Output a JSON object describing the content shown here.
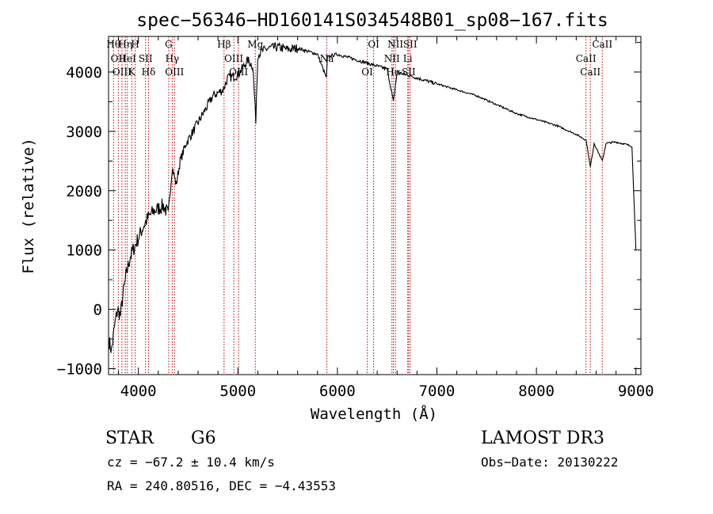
{
  "chart_data": {
    "type": "line",
    "title": "spec−56346−HD160141S034548B01_sp08−167.fits",
    "xlabel": "Wavelength (Å)",
    "ylabel": "Flux (relative)",
    "xlim": [
      3700,
      9050
    ],
    "ylim": [
      -1100,
      4600
    ],
    "x_ticks": [
      4000,
      5000,
      6000,
      7000,
      8000,
      9000
    ],
    "y_ticks": [
      -1000,
      0,
      1000,
      2000,
      3000,
      4000
    ],
    "y_tick_labels": [
      "−1000",
      "0",
      "1000",
      "2000",
      "3000",
      "4000"
    ],
    "series": [
      {
        "name": "spectrum",
        "x": [
          3700,
          3730,
          3760,
          3790,
          3820,
          3850,
          3880,
          3920,
          3960,
          4000,
          4050,
          4100,
          4150,
          4200,
          4250,
          4300,
          4340,
          4380,
          4420,
          4480,
          4550,
          4650,
          4750,
          4850,
          4900,
          5000,
          5100,
          5150,
          5180,
          5200,
          5250,
          5300,
          5400,
          5500,
          5600,
          5700,
          5800,
          5890,
          5900,
          5950,
          6000,
          6100,
          6200,
          6300,
          6400,
          6500,
          6563,
          6600,
          6700,
          6800,
          7000,
          7200,
          7400,
          7600,
          7800,
          8000,
          8200,
          8400,
          8500,
          8542,
          8580,
          8662,
          8700,
          8800,
          8900,
          8960,
          9000
        ],
        "y": [
          -500,
          -700,
          -300,
          0,
          -100,
          300,
          600,
          900,
          1050,
          1200,
          1400,
          1550,
          1650,
          1700,
          1750,
          1600,
          2400,
          2100,
          2500,
          2800,
          3000,
          3300,
          3600,
          3700,
          3900,
          3950,
          4200,
          4100,
          3200,
          4300,
          4350,
          4400,
          4420,
          4380,
          4400,
          4350,
          4300,
          3900,
          4250,
          4280,
          4300,
          4250,
          4200,
          4150,
          4100,
          4050,
          3500,
          4000,
          3950,
          3900,
          3800,
          3700,
          3600,
          3450,
          3300,
          3200,
          3100,
          2950,
          2850,
          2400,
          2800,
          2500,
          2800,
          2820,
          2780,
          2750,
          1000
        ]
      }
    ],
    "line_markers": [
      {
        "wl": 3750,
        "label": "Hθ"
      },
      {
        "wl": 3798,
        "label": "OII"
      },
      {
        "wl": 3835,
        "label": "OIII"
      },
      {
        "wl": 3869,
        "label": "Hη"
      },
      {
        "wl": 3889,
        "label": "HeI"
      },
      {
        "wl": 3934,
        "label": "K"
      },
      {
        "wl": 3968,
        "label": "H"
      },
      {
        "wl": 4072,
        "label": "SII"
      },
      {
        "wl": 4102,
        "label": "Hδ"
      },
      {
        "wl": 4304,
        "label": "G"
      },
      {
        "wl": 4340,
        "label": "Hγ"
      },
      {
        "wl": 4363,
        "label": "OIII"
      },
      {
        "wl": 4861,
        "label": "Hβ"
      },
      {
        "wl": 4959,
        "label": "OIII"
      },
      {
        "wl": 5007,
        "label": "OIII"
      },
      {
        "wl": 5175,
        "label": "Mg"
      },
      {
        "wl": 5894,
        "label": "Na"
      },
      {
        "wl": 6300,
        "label": "OI"
      },
      {
        "wl": 6364,
        "label": "OI"
      },
      {
        "wl": 6548,
        "label": "NII"
      },
      {
        "wl": 6563,
        "label": "Hα"
      },
      {
        "wl": 6583,
        "label": "NII"
      },
      {
        "wl": 6707,
        "label": "Li"
      },
      {
        "wl": 6716,
        "label": "SII"
      },
      {
        "wl": 6731,
        "label": "SII"
      },
      {
        "wl": 8498,
        "label": "CaII"
      },
      {
        "wl": 8542,
        "label": "CaII"
      },
      {
        "wl": 8662,
        "label": "CaII"
      }
    ]
  },
  "info": {
    "class": "STAR",
    "subclass": "G6",
    "survey": "LAMOST DR3",
    "cz": "cz = −67.2 ± 10.4 km/s",
    "obs_date": "Obs−Date: 20130222",
    "radec": "RA = 240.80516, DEC =  −4.43553"
  },
  "colors": {
    "marker": "#c00000",
    "line": "#000000",
    "axis": "#000000"
  }
}
